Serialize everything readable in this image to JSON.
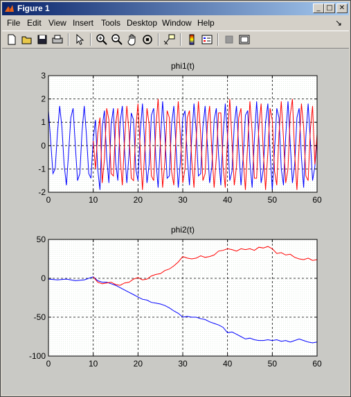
{
  "window": {
    "title": "Figure 1"
  },
  "titlebar_buttons": {
    "minimize": "_",
    "maximize": "□",
    "close": "✕"
  },
  "menu": {
    "items": [
      "File",
      "Edit",
      "View",
      "Insert",
      "Tools",
      "Desktop",
      "Window",
      "Help"
    ],
    "dock_arrow": "↘"
  },
  "toolbar": {
    "tools": [
      "new-figure-icon",
      "open-file-icon",
      "save-icon",
      "print-icon",
      "edit-plot-icon",
      "zoom-in-icon",
      "zoom-out-icon",
      "pan-icon",
      "rotate-3d-icon",
      "data-cursor-icon",
      "colorbar-icon",
      "legend-icon",
      "hide-plot-tools-icon",
      "show-plot-tools-icon"
    ]
  },
  "colors": {
    "series_blue": "#0000ff",
    "series_red": "#ff0000",
    "grid": "#000000"
  },
  "chart_data": [
    {
      "type": "line",
      "title": "phi1(t)",
      "xlim": [
        0,
        60
      ],
      "ylim": [
        -2,
        3
      ],
      "xticks": [
        0,
        10,
        20,
        30,
        40,
        50,
        60
      ],
      "yticks": [
        3,
        2,
        1,
        0,
        -1,
        -2
      ],
      "grid": true,
      "series": [
        {
          "color": "#0000ff",
          "start": 0,
          "x": [
            0,
            0.5,
            1,
            1.5,
            2,
            2.5,
            3,
            3.5,
            4,
            4.5,
            5,
            5.5,
            6,
            6.5,
            7,
            7.5,
            8,
            8.5,
            9,
            9.5,
            10,
            10.5,
            11,
            11.5,
            12,
            12.5,
            13,
            13.5,
            14,
            14.5,
            15,
            15.5,
            16,
            16.5,
            17,
            17.5,
            18,
            18.5,
            19,
            19.5,
            20,
            20.5,
            21,
            21.5,
            22,
            22.5,
            23,
            23.5,
            24,
            24.5,
            25,
            25.5,
            26,
            26.5,
            27,
            27.5,
            28,
            28.5,
            29,
            29.5,
            30,
            30.5,
            31,
            31.5,
            32,
            32.5,
            33,
            33.5,
            34,
            34.5,
            35,
            35.5,
            36,
            36.5,
            37,
            37.5,
            38,
            38.5,
            39,
            39.5,
            40,
            40.5,
            41,
            41.5,
            42,
            42.5,
            43,
            43.5,
            44,
            44.5,
            45,
            45.5,
            46,
            46.5,
            47,
            47.5,
            48,
            48.5,
            49,
            49.5,
            50,
            50.5,
            51,
            51.5,
            52,
            52.5,
            53,
            53.5,
            54,
            54.5,
            55,
            55.5,
            56,
            56.5,
            57,
            57.5,
            58,
            58.5,
            59,
            59.5,
            60
          ],
          "y": [
            1.5,
            0.2,
            -1.2,
            -1.0,
            0.5,
            1.7,
            0.8,
            -0.8,
            -1.7,
            -0.3,
            1.2,
            1.6,
            0.0,
            -1.5,
            -1.2,
            0.6,
            1.7,
            0.4,
            -1.2,
            -1.4,
            0.3,
            1.1,
            -1.0,
            -1.9,
            0.8,
            1.5,
            -0.5,
            -1.6,
            0.9,
            1.6,
            -0.7,
            -1.5,
            1.0,
            1.7,
            -0.2,
            -1.6,
            -0.4,
            1.4,
            1.1,
            -1.0,
            -1.5,
            0.6,
            1.8,
            0.1,
            -1.6,
            -0.8,
            1.3,
            1.6,
            -0.6,
            -1.8,
            0.2,
            1.9,
            0.5,
            -1.4,
            -1.3,
            0.9,
            1.7,
            -0.1,
            -1.8,
            -0.6,
            1.2,
            1.5,
            -0.5,
            -1.7,
            0.3,
            1.8,
            0.6,
            -1.3,
            -1.2,
            0.8,
            1.7,
            0.0,
            -1.6,
            -0.9,
            1.1,
            1.6,
            -0.4,
            -1.7,
            0.4,
            1.8,
            0.4,
            -1.5,
            -1.1,
            0.9,
            1.7,
            -0.1,
            -1.7,
            -0.5,
            1.3,
            1.5,
            -0.7,
            -1.8,
            0.3,
            1.9,
            0.3,
            -1.6,
            -1.0,
            1.0,
            1.8,
            -0.3,
            -1.9,
            -0.2,
            1.6,
            1.2,
            -1.0,
            -1.7,
            0.4,
            1.9,
            0.1,
            -1.6,
            -0.8,
            1.2,
            1.6,
            -0.5,
            -1.8,
            0.4,
            1.8,
            0.2,
            -1.5,
            -0.9,
            0.3
          ]
        },
        {
          "color": "#ff0000",
          "start": 10,
          "x": [
            10,
            10.5,
            11,
            11.5,
            12,
            12.5,
            13,
            13.5,
            14,
            14.5,
            15,
            15.5,
            16,
            16.5,
            17,
            17.5,
            18,
            18.5,
            19,
            19.5,
            20,
            20.5,
            21,
            21.5,
            22,
            22.5,
            23,
            23.5,
            24,
            24.5,
            25,
            25.5,
            26,
            26.5,
            27,
            27.5,
            28,
            28.5,
            29,
            29.5,
            30,
            30.5,
            31,
            31.5,
            32,
            32.5,
            33,
            33.5,
            34,
            34.5,
            35,
            35.5,
            36,
            36.5,
            37,
            37.5,
            38,
            38.5,
            39,
            39.5,
            40,
            40.5,
            41,
            41.5,
            42,
            42.5,
            43,
            43.5,
            44,
            44.5,
            45,
            45.5,
            46,
            46.5,
            47,
            47.5,
            48,
            48.5,
            49,
            49.5,
            50,
            50.5,
            51,
            51.5,
            52,
            52.5,
            53,
            53.5,
            54,
            54.5,
            55,
            55.5,
            56,
            56.5,
            57,
            57.5,
            58,
            58.5,
            59,
            59.5,
            60
          ],
          "y": [
            0.2,
            -1.0,
            0.5,
            1.2,
            -1.6,
            -0.6,
            1.6,
            1.1,
            -1.2,
            -1.3,
            0.9,
            1.6,
            -0.5,
            -1.7,
            0.2,
            1.7,
            0.6,
            -1.4,
            -1.5,
            0.7,
            1.8,
            -0.2,
            -1.9,
            -0.3,
            1.6,
            0.9,
            -1.3,
            -1.5,
            0.8,
            2.0,
            0.0,
            -1.8,
            -0.7,
            1.5,
            1.2,
            -1.1,
            -1.7,
            0.5,
            1.9,
            0.3,
            -1.6,
            -1.0,
            1.2,
            1.5,
            -0.6,
            -1.8,
            0.3,
            1.9,
            0.5,
            -1.5,
            -1.2,
            0.9,
            1.7,
            -0.2,
            -1.8,
            -0.5,
            1.4,
            1.4,
            -0.9,
            -1.8,
            0.4,
            2.0,
            0.2,
            -1.7,
            -0.9,
            1.2,
            1.6,
            -0.6,
            -1.9,
            0.1,
            1.9,
            0.6,
            -1.4,
            -1.4,
            0.8,
            1.8,
            -0.3,
            -1.9,
            -0.3,
            1.6,
            1.1,
            -1.1,
            -1.7,
            0.5,
            1.9,
            0.3,
            -1.6,
            -1.0,
            1.3,
            2.0,
            -0.4,
            -1.9,
            0.0,
            1.8,
            0.8,
            -1.3,
            -1.5,
            0.7,
            1.7,
            -0.8,
            0.5
          ]
        }
      ]
    },
    {
      "type": "line",
      "title": "phi2(t)",
      "xlim": [
        0,
        60
      ],
      "ylim": [
        -100,
        50
      ],
      "xticks": [
        0,
        10,
        20,
        30,
        40,
        50,
        60
      ],
      "yticks": [
        50,
        0,
        -50,
        -100
      ],
      "grid": true,
      "series": [
        {
          "color": "#0000ff",
          "start": 0,
          "x": [
            0,
            2,
            4,
            6,
            8,
            10,
            11,
            12,
            13,
            14,
            15,
            16,
            17,
            18,
            19,
            20,
            21,
            22,
            23,
            24,
            25,
            26,
            27,
            28,
            29,
            30,
            31,
            32,
            33,
            34,
            35,
            36,
            37,
            38,
            39,
            40,
            41,
            42,
            43,
            44,
            45,
            46,
            47,
            48,
            49,
            50,
            51,
            52,
            53,
            54,
            55,
            56,
            57,
            58,
            59,
            60
          ],
          "y": [
            -1,
            -2,
            -1,
            -3,
            -2,
            2,
            -3,
            -5,
            -5,
            -7,
            -9,
            -12,
            -15,
            -18,
            -21,
            -24,
            -27,
            -28,
            -31,
            -32,
            -33,
            -35,
            -38,
            -42,
            -45,
            -50,
            -49,
            -50,
            -50,
            -52,
            -53,
            -56,
            -58,
            -60,
            -63,
            -70,
            -69,
            -72,
            -75,
            -78,
            -77,
            -79,
            -80,
            -80,
            -79,
            -80,
            -79,
            -81,
            -80,
            -82,
            -80,
            -78,
            -80,
            -82,
            -83,
            -82
          ]
        },
        {
          "color": "#ff0000",
          "start": 10,
          "x": [
            10,
            11,
            12,
            13,
            14,
            15,
            16,
            17,
            18,
            19,
            20,
            21,
            22,
            23,
            24,
            25,
            26,
            27,
            28,
            29,
            30,
            31,
            32,
            33,
            34,
            35,
            36,
            37,
            38,
            39,
            40,
            41,
            42,
            43,
            44,
            45,
            46,
            47,
            48,
            49,
            50,
            51,
            52,
            53,
            54,
            55,
            56,
            57,
            58,
            59,
            60
          ],
          "y": [
            2,
            -5,
            -7,
            -6,
            -5,
            -8,
            -9,
            -6,
            -5,
            -1,
            1,
            -2,
            -1,
            3,
            5,
            6,
            10,
            12,
            16,
            21,
            28,
            26,
            25,
            26,
            29,
            27,
            28,
            30,
            35,
            36,
            38,
            37,
            35,
            38,
            37,
            38,
            36,
            40,
            39,
            41,
            38,
            32,
            33,
            30,
            31,
            27,
            25,
            24,
            26,
            23,
            24
          ]
        }
      ]
    }
  ]
}
